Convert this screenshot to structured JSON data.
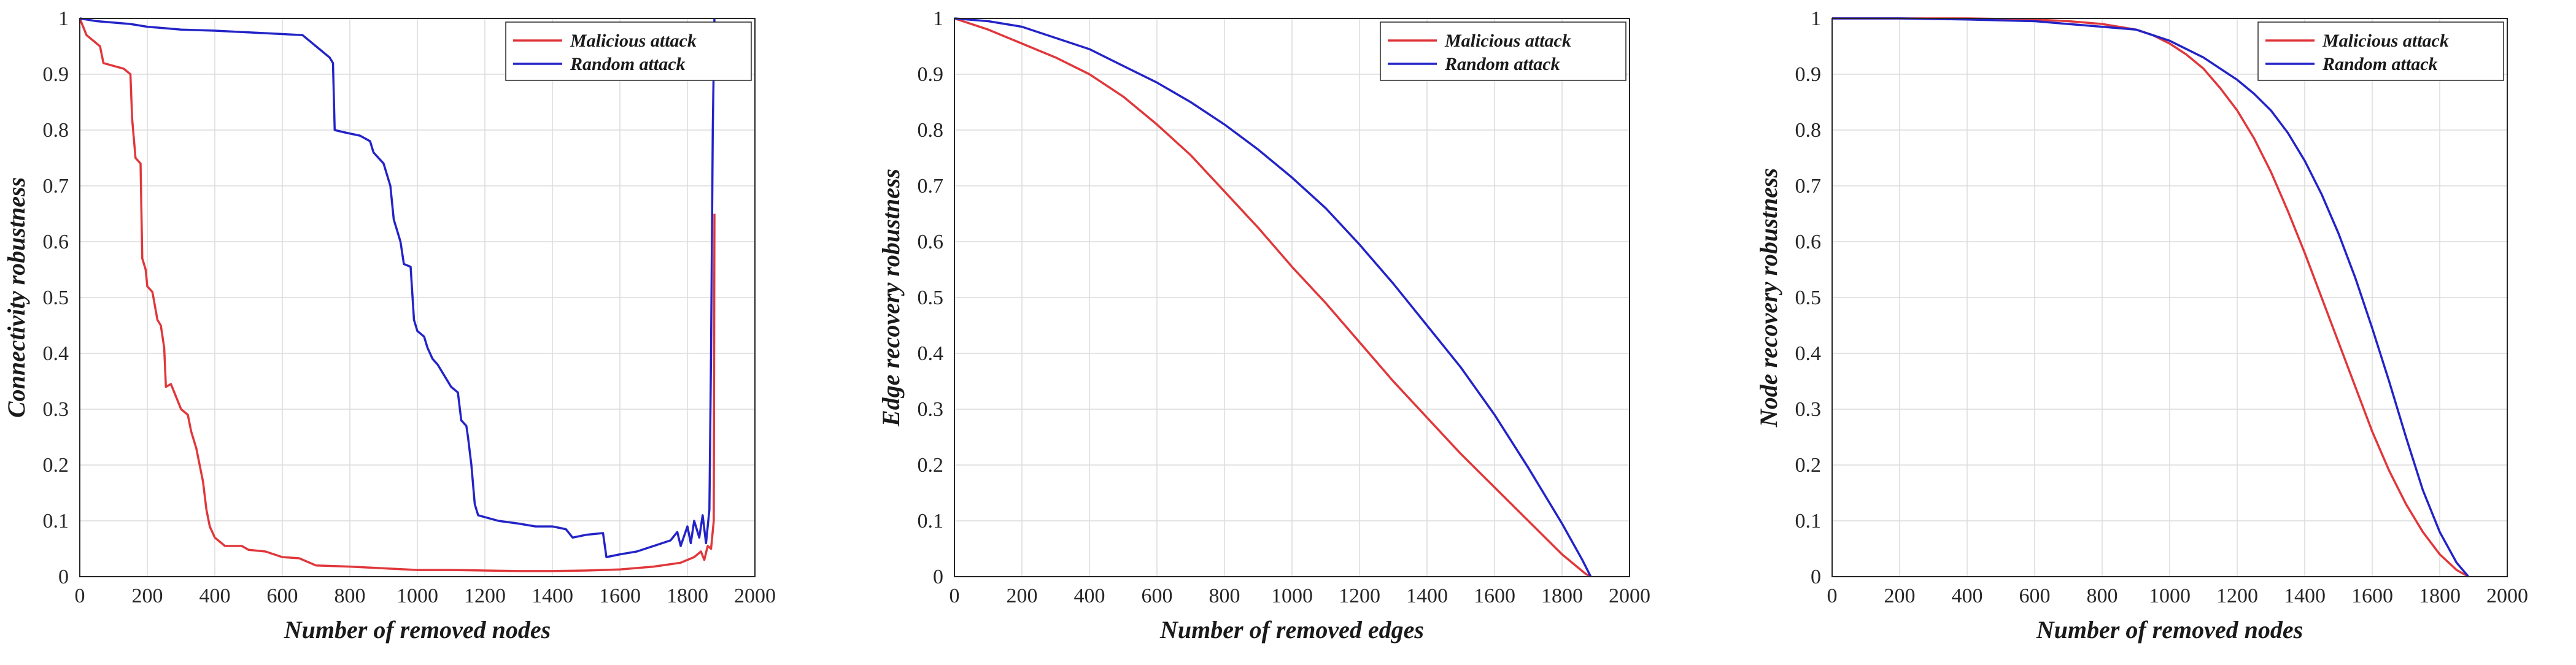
{
  "chart_data": [
    {
      "type": "line",
      "xlabel": "Number of removed nodes",
      "ylabel": "Connectivity robustness",
      "xlim": [
        0,
        2000
      ],
      "ylim": [
        0,
        1
      ],
      "xticks": [
        0,
        200,
        400,
        600,
        800,
        1000,
        1200,
        1400,
        1600,
        1800,
        2000
      ],
      "yticks": [
        0,
        0.1,
        0.2,
        0.3,
        0.4,
        0.5,
        0.6,
        0.7,
        0.8,
        0.9,
        1
      ],
      "grid": true,
      "legend": "top-right",
      "series": [
        {
          "name": "Malicious attack",
          "color": "#e0373b",
          "points": [
            [
              0,
              1
            ],
            [
              20,
              0.97
            ],
            [
              40,
              0.96
            ],
            [
              60,
              0.95
            ],
            [
              70,
              0.92
            ],
            [
              100,
              0.915
            ],
            [
              130,
              0.91
            ],
            [
              150,
              0.9
            ],
            [
              155,
              0.82
            ],
            [
              165,
              0.75
            ],
            [
              180,
              0.74
            ],
            [
              185,
              0.57
            ],
            [
              195,
              0.55
            ],
            [
              200,
              0.52
            ],
            [
              215,
              0.51
            ],
            [
              230,
              0.46
            ],
            [
              240,
              0.45
            ],
            [
              250,
              0.41
            ],
            [
              255,
              0.34
            ],
            [
              270,
              0.345
            ],
            [
              280,
              0.33
            ],
            [
              300,
              0.3
            ],
            [
              320,
              0.29
            ],
            [
              330,
              0.26
            ],
            [
              345,
              0.23
            ],
            [
              355,
              0.2
            ],
            [
              365,
              0.17
            ],
            [
              375,
              0.12
            ],
            [
              385,
              0.09
            ],
            [
              400,
              0.07
            ],
            [
              430,
              0.055
            ],
            [
              480,
              0.055
            ],
            [
              500,
              0.048
            ],
            [
              550,
              0.045
            ],
            [
              600,
              0.035
            ],
            [
              650,
              0.033
            ],
            [
              700,
              0.02
            ],
            [
              800,
              0.018
            ],
            [
              900,
              0.015
            ],
            [
              1000,
              0.012
            ],
            [
              1100,
              0.012
            ],
            [
              1200,
              0.011
            ],
            [
              1300,
              0.01
            ],
            [
              1400,
              0.01
            ],
            [
              1500,
              0.011
            ],
            [
              1600,
              0.013
            ],
            [
              1700,
              0.018
            ],
            [
              1780,
              0.025
            ],
            [
              1820,
              0.035
            ],
            [
              1840,
              0.045
            ],
            [
              1850,
              0.03
            ],
            [
              1860,
              0.055
            ],
            [
              1870,
              0.05
            ],
            [
              1878,
              0.1
            ],
            [
              1880,
              0.65
            ]
          ]
        },
        {
          "name": "Random attack",
          "color": "#2323c8",
          "points": [
            [
              0,
              1
            ],
            [
              50,
              0.995
            ],
            [
              150,
              0.99
            ],
            [
              200,
              0.985
            ],
            [
              300,
              0.98
            ],
            [
              400,
              0.978
            ],
            [
              500,
              0.975
            ],
            [
              600,
              0.972
            ],
            [
              660,
              0.97
            ],
            [
              700,
              0.95
            ],
            [
              720,
              0.94
            ],
            [
              740,
              0.93
            ],
            [
              750,
              0.92
            ],
            [
              755,
              0.8
            ],
            [
              790,
              0.795
            ],
            [
              830,
              0.79
            ],
            [
              860,
              0.78
            ],
            [
              870,
              0.76
            ],
            [
              900,
              0.74
            ],
            [
              920,
              0.7
            ],
            [
              930,
              0.64
            ],
            [
              950,
              0.6
            ],
            [
              960,
              0.56
            ],
            [
              980,
              0.555
            ],
            [
              990,
              0.46
            ],
            [
              1000,
              0.44
            ],
            [
              1020,
              0.43
            ],
            [
              1030,
              0.41
            ],
            [
              1045,
              0.39
            ],
            [
              1060,
              0.38
            ],
            [
              1080,
              0.36
            ],
            [
              1100,
              0.34
            ],
            [
              1120,
              0.33
            ],
            [
              1130,
              0.28
            ],
            [
              1145,
              0.27
            ],
            [
              1150,
              0.25
            ],
            [
              1160,
              0.2
            ],
            [
              1170,
              0.13
            ],
            [
              1180,
              0.11
            ],
            [
              1240,
              0.1
            ],
            [
              1300,
              0.095
            ],
            [
              1350,
              0.09
            ],
            [
              1400,
              0.09
            ],
            [
              1440,
              0.085
            ],
            [
              1460,
              0.07
            ],
            [
              1500,
              0.075
            ],
            [
              1550,
              0.078
            ],
            [
              1560,
              0.035
            ],
            [
              1600,
              0.04
            ],
            [
              1650,
              0.045
            ],
            [
              1700,
              0.055
            ],
            [
              1750,
              0.065
            ],
            [
              1770,
              0.08
            ],
            [
              1780,
              0.055
            ],
            [
              1800,
              0.09
            ],
            [
              1810,
              0.06
            ],
            [
              1820,
              0.1
            ],
            [
              1835,
              0.07
            ],
            [
              1845,
              0.11
            ],
            [
              1855,
              0.06
            ],
            [
              1865,
              0.12
            ],
            [
              1870,
              0.4
            ],
            [
              1875,
              0.8
            ],
            [
              1880,
              1
            ]
          ]
        }
      ]
    },
    {
      "type": "line",
      "xlabel": "Number of removed edges",
      "ylabel": "Edge recovery robustness",
      "xlim": [
        0,
        2000
      ],
      "ylim": [
        0,
        1
      ],
      "xticks": [
        0,
        200,
        400,
        600,
        800,
        1000,
        1200,
        1400,
        1600,
        1800,
        2000
      ],
      "yticks": [
        0,
        0.1,
        0.2,
        0.3,
        0.4,
        0.5,
        0.6,
        0.7,
        0.8,
        0.9,
        1
      ],
      "grid": true,
      "legend": "top-right",
      "series": [
        {
          "name": "Malicious attack",
          "color": "#e0373b",
          "points": [
            [
              0,
              1
            ],
            [
              100,
              0.98
            ],
            [
              200,
              0.955
            ],
            [
              300,
              0.93
            ],
            [
              400,
              0.9
            ],
            [
              500,
              0.86
            ],
            [
              600,
              0.81
            ],
            [
              700,
              0.755
            ],
            [
              800,
              0.69
            ],
            [
              900,
              0.625
            ],
            [
              1000,
              0.555
            ],
            [
              1100,
              0.49
            ],
            [
              1200,
              0.42
            ],
            [
              1300,
              0.35
            ],
            [
              1400,
              0.285
            ],
            [
              1500,
              0.22
            ],
            [
              1600,
              0.16
            ],
            [
              1700,
              0.1
            ],
            [
              1800,
              0.04
            ],
            [
              1870,
              0.005
            ],
            [
              1885,
              0
            ]
          ]
        },
        {
          "name": "Random attack",
          "color": "#2323c8",
          "points": [
            [
              0,
              1
            ],
            [
              100,
              0.995
            ],
            [
              200,
              0.985
            ],
            [
              300,
              0.965
            ],
            [
              400,
              0.945
            ],
            [
              500,
              0.915
            ],
            [
              600,
              0.885
            ],
            [
              700,
              0.85
            ],
            [
              800,
              0.81
            ],
            [
              900,
              0.765
            ],
            [
              1000,
              0.715
            ],
            [
              1100,
              0.66
            ],
            [
              1200,
              0.595
            ],
            [
              1300,
              0.525
            ],
            [
              1400,
              0.45
            ],
            [
              1500,
              0.375
            ],
            [
              1600,
              0.29
            ],
            [
              1700,
              0.195
            ],
            [
              1800,
              0.095
            ],
            [
              1860,
              0.03
            ],
            [
              1885,
              0
            ]
          ]
        }
      ]
    },
    {
      "type": "line",
      "xlabel": "Number of removed nodes",
      "ylabel": "Node recovery robustness",
      "xlim": [
        0,
        2000
      ],
      "ylim": [
        0,
        1
      ],
      "xticks": [
        0,
        200,
        400,
        600,
        800,
        1000,
        1200,
        1400,
        1600,
        1800,
        2000
      ],
      "yticks": [
        0,
        0.1,
        0.2,
        0.3,
        0.4,
        0.5,
        0.6,
        0.7,
        0.8,
        0.9,
        1
      ],
      "grid": true,
      "legend": "top-right",
      "series": [
        {
          "name": "Malicious attack",
          "color": "#e0373b",
          "points": [
            [
              0,
              1
            ],
            [
              200,
              1
            ],
            [
              400,
              1
            ],
            [
              600,
              0.998
            ],
            [
              700,
              0.995
            ],
            [
              800,
              0.99
            ],
            [
              900,
              0.98
            ],
            [
              950,
              0.97
            ],
            [
              1000,
              0.955
            ],
            [
              1050,
              0.935
            ],
            [
              1100,
              0.91
            ],
            [
              1150,
              0.875
            ],
            [
              1200,
              0.835
            ],
            [
              1250,
              0.785
            ],
            [
              1300,
              0.725
            ],
            [
              1350,
              0.655
            ],
            [
              1400,
              0.58
            ],
            [
              1450,
              0.5
            ],
            [
              1500,
              0.42
            ],
            [
              1550,
              0.34
            ],
            [
              1600,
              0.26
            ],
            [
              1650,
              0.19
            ],
            [
              1700,
              0.13
            ],
            [
              1750,
              0.08
            ],
            [
              1800,
              0.04
            ],
            [
              1850,
              0.012
            ],
            [
              1885,
              0
            ]
          ]
        },
        {
          "name": "Random attack",
          "color": "#2323c8",
          "points": [
            [
              0,
              1
            ],
            [
              200,
              1
            ],
            [
              400,
              0.998
            ],
            [
              600,
              0.995
            ],
            [
              700,
              0.99
            ],
            [
              800,
              0.985
            ],
            [
              900,
              0.98
            ],
            [
              950,
              0.97
            ],
            [
              1000,
              0.96
            ],
            [
              1050,
              0.945
            ],
            [
              1100,
              0.93
            ],
            [
              1150,
              0.91
            ],
            [
              1200,
              0.89
            ],
            [
              1250,
              0.865
            ],
            [
              1300,
              0.835
            ],
            [
              1350,
              0.795
            ],
            [
              1400,
              0.745
            ],
            [
              1450,
              0.685
            ],
            [
              1500,
              0.615
            ],
            [
              1550,
              0.535
            ],
            [
              1600,
              0.445
            ],
            [
              1650,
              0.35
            ],
            [
              1700,
              0.25
            ],
            [
              1750,
              0.155
            ],
            [
              1800,
              0.08
            ],
            [
              1850,
              0.025
            ],
            [
              1885,
              0
            ]
          ]
        }
      ]
    }
  ]
}
